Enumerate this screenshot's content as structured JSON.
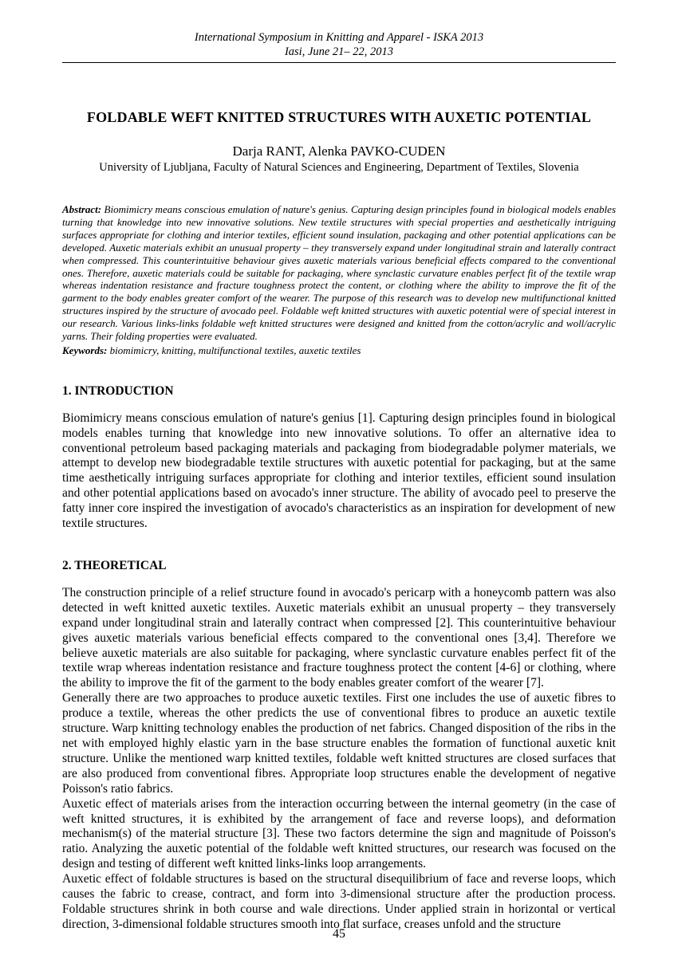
{
  "header": {
    "line1": "International Symposium in Knitting and Apparel - ISKA 2013",
    "line2": "Iasi, June 21– 22, 2013"
  },
  "title": "FOLDABLE WEFT KNITTED STRUCTURES WITH AUXETIC POTENTIAL",
  "authors": "Darja RANT, Alenka PAVKO-CUDEN",
  "affiliation": "University of Ljubljana, Faculty of Natural Sciences and Engineering, Department of Textiles, Slovenia",
  "abstract": {
    "label": "Abstract:",
    "text": "Biomimicry means conscious emulation of nature's genius. Capturing design principles found in biological models enables turning that knowledge into new innovative solutions. New textile structures with special properties and aesthetically intriguing surfaces appropriate for clothing and interior textiles, efficient sound insulation, packaging and other potential applications can be developed. Auxetic materials exhibit an unusual property – they transversely expand under longitudinal strain and laterally contract when compressed. This counterintuitive behaviour gives auxetic materials various beneficial effects compared to the conventional ones. Therefore, auxetic materials could be suitable for packaging, where synclastic curvature enables perfect fit of the textile wrap whereas indentation resistance and fracture toughness protect the content, or clothing where the ability to improve the fit of the garment to the body enables greater comfort of the wearer. The purpose of this research was to develop new multifunctional knitted structures inspired by the structure of avocado peel. Foldable weft knitted structures with auxetic potential were of special interest in our research. Various links-links foldable weft knitted structures were designed and knitted from the cotton/acrylic and woll/acrylic yarns. Their folding properties were evaluated."
  },
  "keywords": {
    "label": "Keywords:",
    "text": "biomimicry, knitting, multifunctional textiles, auxetic textiles"
  },
  "sections": {
    "intro": {
      "heading": "1. INTRODUCTION",
      "para1": "Biomimicry means conscious emulation of nature's genius [1]. Capturing design principles found in biological models enables turning that knowledge into new innovative solutions. To offer an alternative idea to conventional petroleum based packaging materials and packaging from biodegradable polymer materials, we attempt to develop new biodegradable textile structures with auxetic potential for packaging, but at the same time aesthetically intriguing surfaces appropriate for clothing and interior textiles, efficient sound insulation and other potential applications based on avocado's inner structure. The ability of avocado peel to preserve the fatty inner core inspired the investigation of avocado's characteristics as an inspiration for development of new textile structures."
    },
    "theoretical": {
      "heading": "2. THEORETICAL",
      "para1": "The construction principle of a relief structure found in avocado's pericarp with a honeycomb pattern was also detected in weft knitted auxetic textiles. Auxetic materials exhibit an unusual property – they transversely expand under longitudinal strain and laterally contract when compressed [2]. This counterintuitive behaviour gives auxetic materials various beneficial effects compared to the conventional ones [3,4]. Therefore we believe auxetic materials are also suitable for packaging, where synclastic curvature enables perfect fit of the textile wrap whereas indentation resistance and fracture toughness protect the content [4-6] or clothing, where the ability to improve the fit of the garment to the body enables greater comfort of the wearer [7].",
      "para2": "Generally there are two approaches to produce auxetic textiles. First one includes the use of auxetic fibres to produce a textile, whereas the other predicts the use of conventional fibres to produce an auxetic textile structure. Warp knitting technology enables the production of net fabrics. Changed disposition of the ribs in the net with employed highly elastic yarn in the base structure enables the formation of functional auxetic knit structure. Unlike the mentioned warp knitted textiles, foldable weft knitted structures are closed surfaces that are also produced from conventional fibres. Appropriate loop structures enable the development of negative Poisson's ratio fabrics.",
      "para3": "Auxetic effect of materials arises from the interaction occurring between the internal geometry (in the case of weft knitted structures, it is exhibited by the arrangement of face and reverse loops), and deformation mechanism(s) of the material structure [3]. These two factors determine the sign and magnitude of Poisson's ratio. Analyzing the auxetic potential of the foldable weft knitted structures, our research was focused on the design and testing of different weft knitted links-links loop arrangements.",
      "para4": "Auxetic effect of foldable structures is based on the structural disequilibrium of face and reverse loops, which causes the fabric to crease, contract, and form into 3-dimensional structure after the production process. Foldable structures shrink in both course and wale directions. Under applied strain in horizontal or vertical direction, 3-dimensional foldable structures smooth into flat surface, creases unfold and the structure"
    }
  },
  "pageNumber": "45"
}
